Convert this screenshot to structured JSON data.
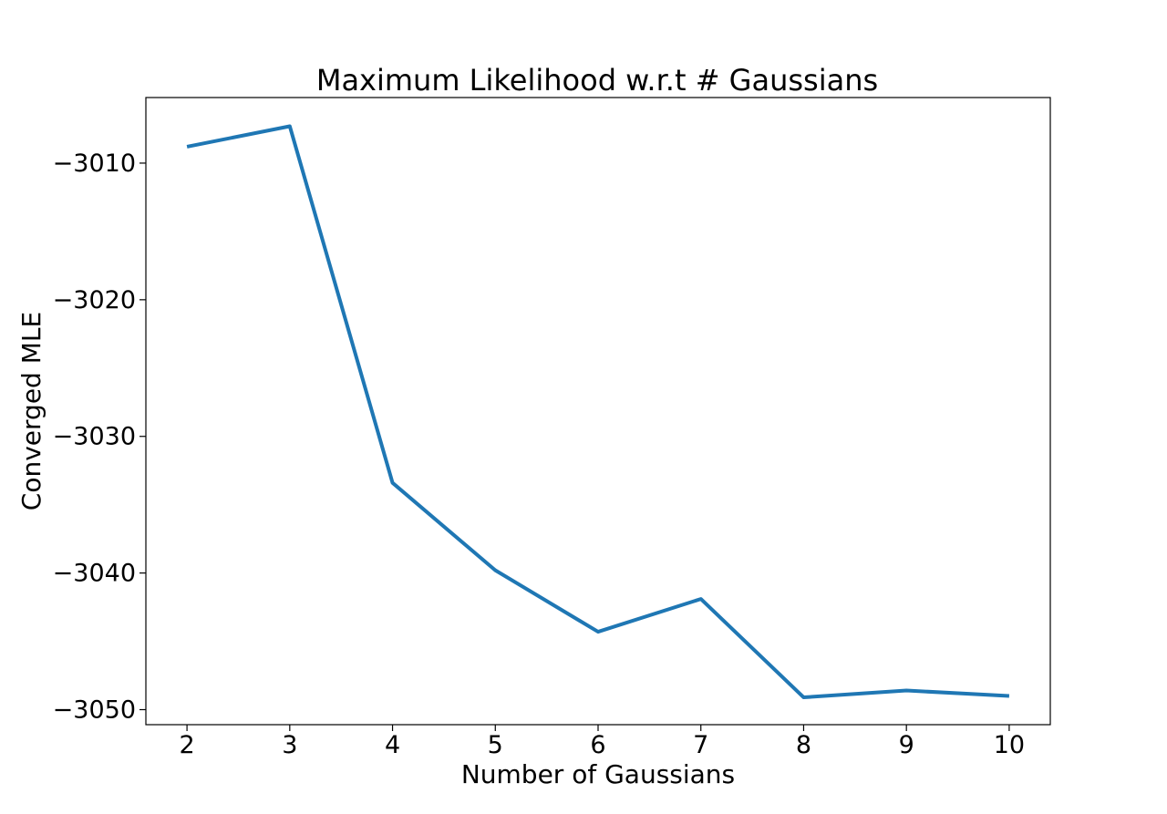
{
  "chart_data": {
    "type": "line",
    "title": "Maximum Likelihood w.r.t # Gaussians",
    "xlabel": "Number of Gaussians",
    "ylabel": "Converged MLE",
    "x": [
      2,
      3,
      4,
      5,
      6,
      7,
      8,
      9,
      10
    ],
    "series": [
      {
        "values": [
          -3008.8,
          -3007.3,
          -3033.4,
          -3039.8,
          -3044.3,
          -3041.9,
          -3049.1,
          -3048.6,
          -3049.0
        ],
        "color": "#1f77b4"
      }
    ],
    "xlim": [
      1.6,
      10.4
    ],
    "ylim": [
      -3051.1,
      -3005.2
    ],
    "xticks": [
      2,
      3,
      4,
      5,
      6,
      7,
      8,
      9,
      10
    ],
    "xtick_labels": [
      "2",
      "3",
      "4",
      "5",
      "6",
      "7",
      "8",
      "9",
      "10"
    ],
    "yticks": [
      -3010,
      -3020,
      -3030,
      -3040,
      -3050
    ],
    "ytick_labels": [
      "−3010",
      "−3020",
      "−3030",
      "−3040",
      "−3050"
    ],
    "grid": false,
    "legend": "none"
  }
}
